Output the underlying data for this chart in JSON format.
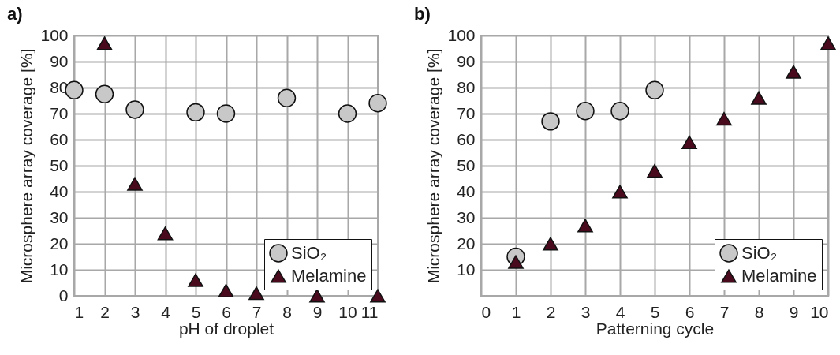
{
  "chart_data": [
    {
      "type": "scatter",
      "title": "a)",
      "xlabel": "pH of droplet",
      "ylabel": "Microsphere array coverage [%]",
      "xlim": [
        1,
        11
      ],
      "xticks": [
        1,
        2,
        3,
        4,
        5,
        6,
        7,
        8,
        9,
        10,
        11
      ],
      "ylim": [
        0,
        100
      ],
      "yticks": [
        0,
        10,
        20,
        30,
        40,
        50,
        60,
        70,
        80,
        90,
        100
      ],
      "grid": true,
      "legend": "bottom right",
      "series": [
        {
          "name": "SiO₂",
          "color": "#c8c8c8",
          "marker": "circle",
          "x": [
            1,
            2,
            3,
            5,
            6,
            8,
            10,
            11
          ],
          "values": [
            79,
            77.5,
            71.5,
            70.5,
            70,
            76,
            70,
            74
          ]
        },
        {
          "name": "Melamine",
          "color": "#4a0a1e",
          "marker": "triangle",
          "x": [
            2,
            3,
            4,
            5,
            6,
            7,
            9,
            11
          ],
          "values": [
            97,
            43,
            24,
            6,
            2,
            1,
            0,
            0
          ]
        }
      ]
    },
    {
      "type": "scatter",
      "title": "b)",
      "xlabel": "Patterning cycle",
      "ylabel": "Microsphere array coverage [%]",
      "xlim": [
        0,
        10
      ],
      "xticks": [
        0,
        1,
        2,
        3,
        4,
        5,
        6,
        7,
        8,
        9,
        10
      ],
      "ylim": [
        0,
        100
      ],
      "yticks": [
        {
          "value": 0,
          "label": null
        },
        10,
        20,
        30,
        40,
        50,
        60,
        70,
        80,
        90,
        100
      ],
      "grid": true,
      "legend": "bottom right",
      "series": [
        {
          "name": "SiO₂",
          "color": "#c8c8c8",
          "marker": "circle",
          "x": [
            1,
            2,
            3,
            4,
            5
          ],
          "values": [
            15,
            67,
            71,
            71,
            79
          ]
        },
        {
          "name": "Melamine",
          "color": "#4a0a1e",
          "marker": "triangle",
          "x": [
            1,
            2,
            3,
            4,
            5,
            6,
            7,
            8,
            9,
            10
          ],
          "values": [
            13,
            20,
            27,
            40,
            48,
            59,
            68,
            76,
            86,
            97
          ]
        }
      ]
    }
  ]
}
